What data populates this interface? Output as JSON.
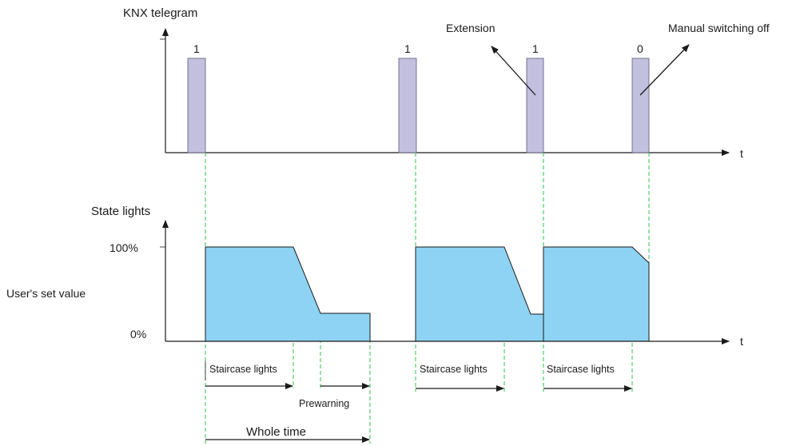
{
  "top_chart": {
    "title": "KNX telegram",
    "time_label": "t",
    "telegrams": [
      "1",
      "1",
      "1",
      "0"
    ],
    "pulse_color": "#c3c0df",
    "pulse_stroke": "#5a5a7a"
  },
  "annotations": {
    "extension": "Extension",
    "manual_off": "Manual switching off"
  },
  "bottom_chart": {
    "title": "State lights",
    "time_label": "t",
    "level_100": "100%",
    "level_0": "0%",
    "user_value": "User's set value",
    "fill_color": "#8ed3f3",
    "edge_color": "#1a1a1a"
  },
  "guide_color": "#33c24a",
  "intervals": {
    "staircase_1": "Staircase lights",
    "prewarning": "Prewarning",
    "staircase_2": "Staircase lights",
    "staircase_3": "Staircase lights",
    "whole_time": "Whole time"
  }
}
